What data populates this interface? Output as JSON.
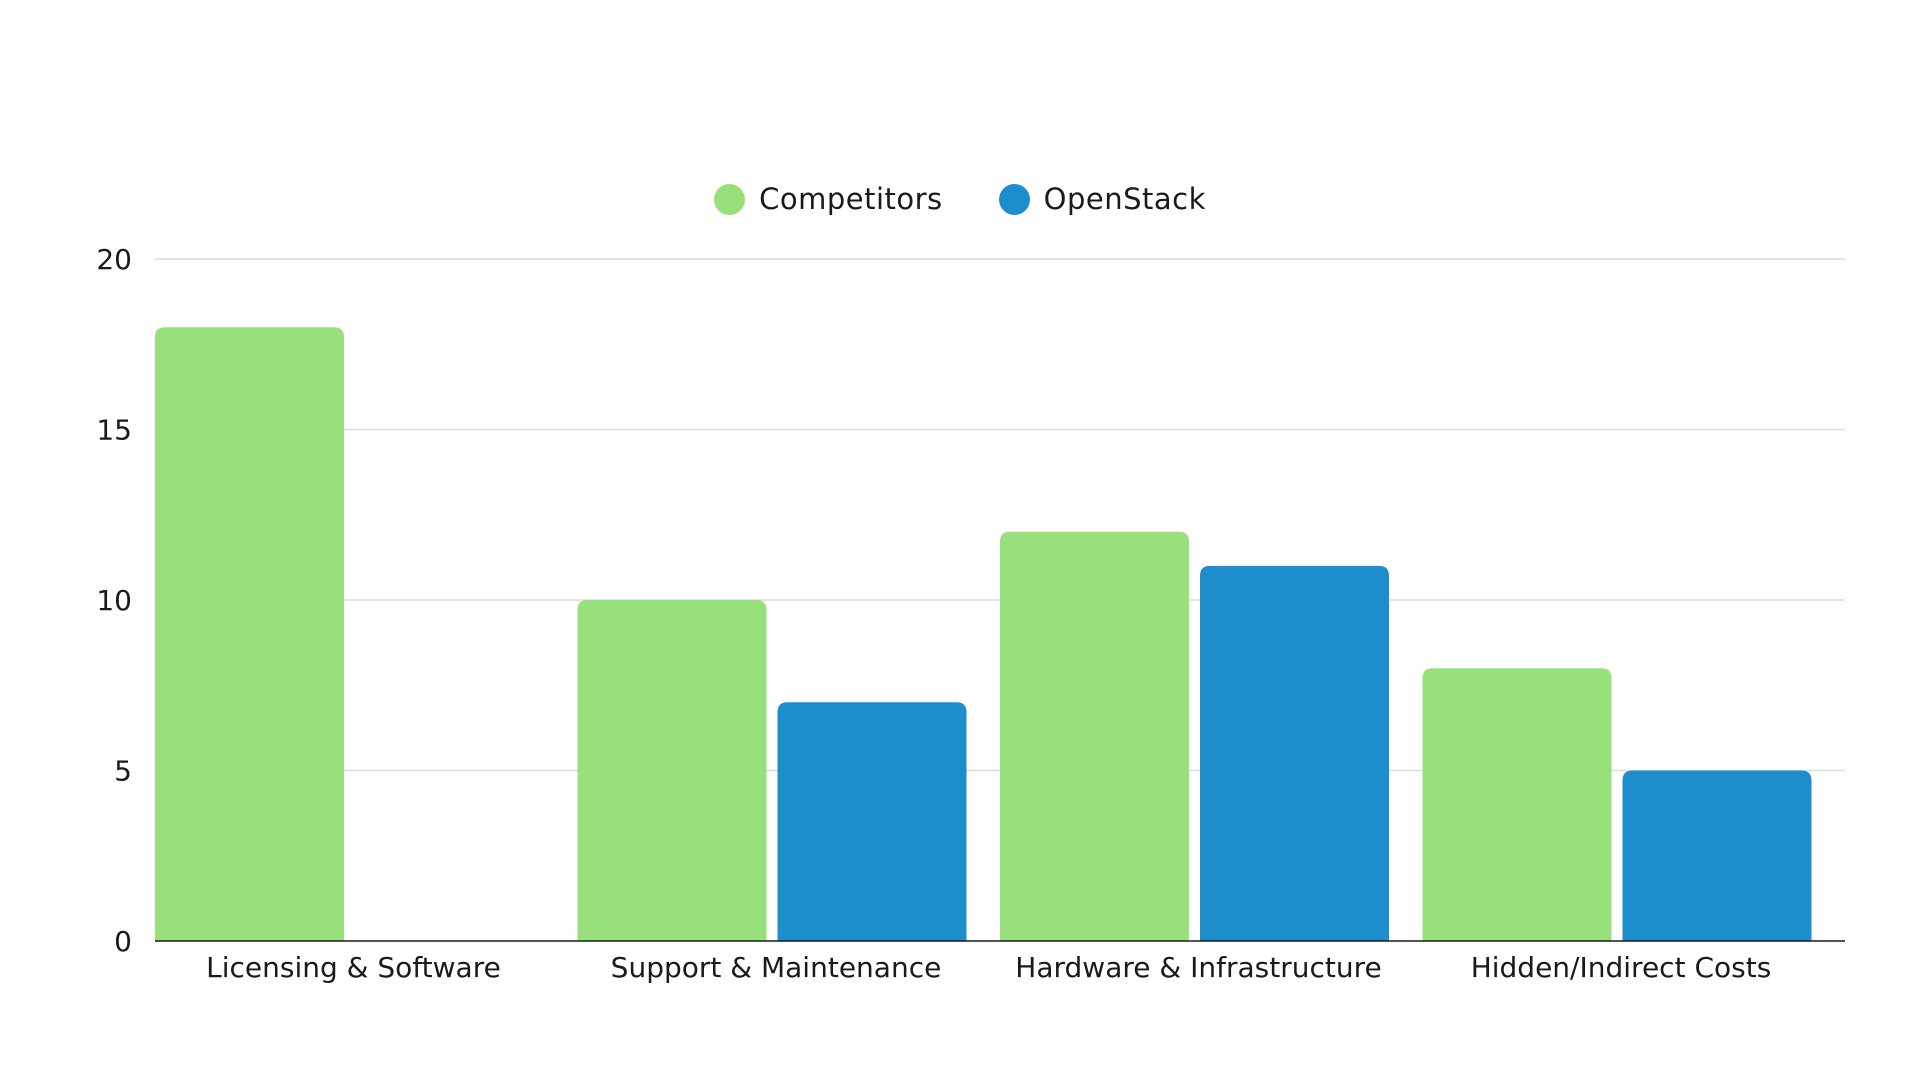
{
  "chart_data": {
    "type": "bar",
    "title": "",
    "xlabel": "",
    "ylabel": "",
    "categories": [
      "Licensing & Software",
      "Support & Maintenance",
      "Hardware & Infrastructure",
      "Hidden/Indirect Costs"
    ],
    "series": [
      {
        "name": "Competitors",
        "color": "#98e07b",
        "values": [
          18,
          10,
          12,
          8
        ]
      },
      {
        "name": "OpenStack",
        "color": "#1e8dcc",
        "values": [
          0,
          7,
          11,
          5
        ]
      }
    ],
    "ylim": [
      0,
      20
    ],
    "yticks": [
      "0",
      "5",
      "10",
      "15",
      "20"
    ],
    "grid": true,
    "legend_position": "top-center"
  }
}
